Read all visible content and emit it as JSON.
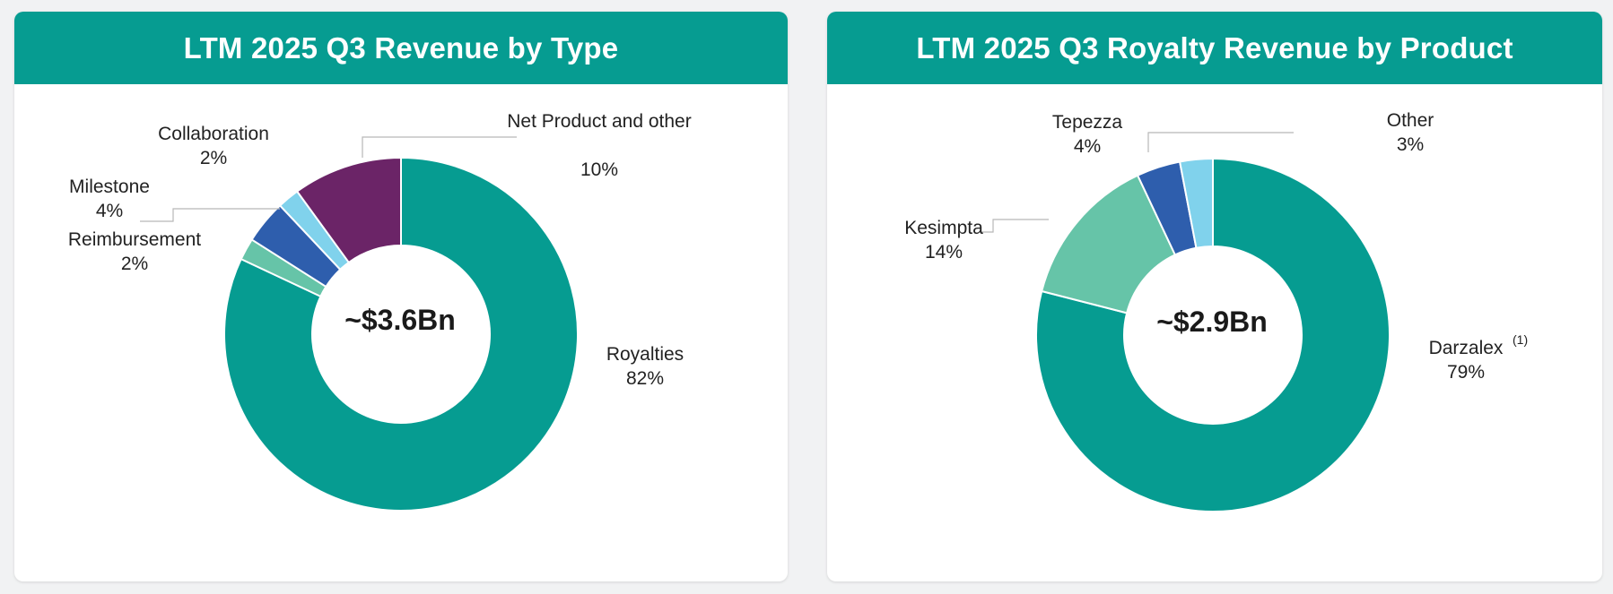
{
  "colors": {
    "header": "#069c91",
    "royalties": "#069c91",
    "teal_light": "#66c4a8",
    "blue": "#2e5ead",
    "light_blue": "#80d2ec",
    "purple": "#6b2467"
  },
  "chart_data": [
    {
      "type": "pie",
      "variant": "donut",
      "title": "LTM 2025 Q3 Revenue by Type",
      "center_label": "~$3.6Bn",
      "slices": [
        {
          "name": "Royalties",
          "value": 82,
          "label": "82%",
          "color": "#069c91"
        },
        {
          "name": "Reimbursement",
          "value": 2,
          "label": "2%",
          "color": "#66c4a8"
        },
        {
          "name": "Milestone",
          "value": 4,
          "label": "4%",
          "color": "#2e5ead"
        },
        {
          "name": "Collaboration",
          "value": 2,
          "label": "2%",
          "color": "#80d2ec"
        },
        {
          "name": "Net Product and other",
          "value": 10,
          "label": "10%",
          "color": "#6b2467"
        }
      ]
    },
    {
      "type": "pie",
      "variant": "donut",
      "title": "LTM 2025 Q3 Royalty Revenue by Product",
      "center_label": "~$2.9Bn",
      "slices": [
        {
          "name": "Darzalex",
          "value": 79,
          "label": "79%",
          "footnote": "(1)",
          "color": "#069c91"
        },
        {
          "name": "Kesimpta",
          "value": 14,
          "label": "14%",
          "color": "#66c4a8"
        },
        {
          "name": "Tepezza",
          "value": 4,
          "label": "4%",
          "color": "#2e5ead"
        },
        {
          "name": "Other",
          "value": 3,
          "label": "3%",
          "color": "#80d2ec"
        }
      ]
    }
  ]
}
